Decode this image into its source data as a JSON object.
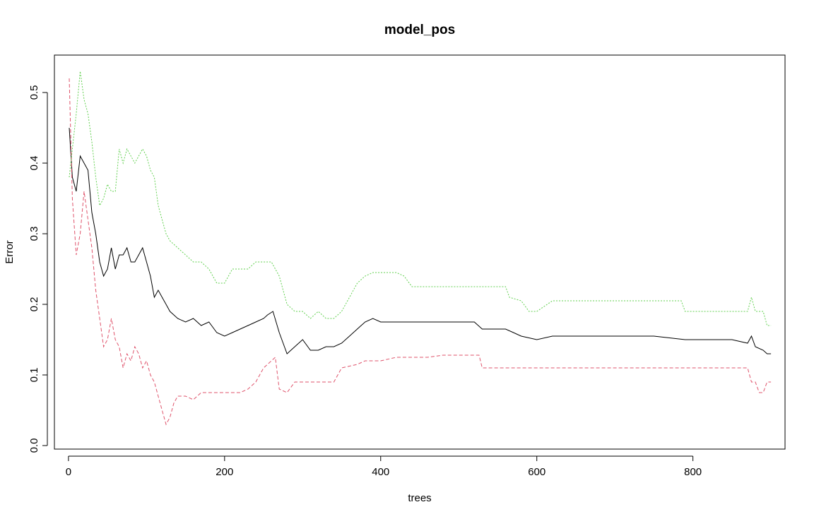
{
  "chart_data": {
    "type": "line",
    "title": "model_pos",
    "xlabel": "trees",
    "ylabel": "Error",
    "xlim": [
      -18,
      918
    ],
    "ylim": [
      -0.005,
      0.553
    ],
    "xticks": [
      0,
      200,
      400,
      600,
      800
    ],
    "yticks": [
      0.0,
      0.1,
      0.2,
      0.3,
      0.4,
      0.5
    ],
    "xtick_labels": [
      "0",
      "200",
      "400",
      "600",
      "800"
    ],
    "ytick_labels": [
      "0.0",
      "0.1",
      "0.2",
      "0.3",
      "0.4",
      "0.5"
    ],
    "grid": false,
    "legend": "none",
    "series": [
      {
        "color": "#000000",
        "dash": "solid",
        "points": [
          [
            1,
            0.45
          ],
          [
            5,
            0.38
          ],
          [
            10,
            0.36
          ],
          [
            15,
            0.41
          ],
          [
            20,
            0.4
          ],
          [
            25,
            0.39
          ],
          [
            30,
            0.33
          ],
          [
            35,
            0.3
          ],
          [
            40,
            0.26
          ],
          [
            45,
            0.24
          ],
          [
            50,
            0.25
          ],
          [
            55,
            0.28
          ],
          [
            60,
            0.25
          ],
          [
            65,
            0.27
          ],
          [
            70,
            0.27
          ],
          [
            75,
            0.28
          ],
          [
            80,
            0.26
          ],
          [
            85,
            0.26
          ],
          [
            90,
            0.27
          ],
          [
            95,
            0.28
          ],
          [
            100,
            0.26
          ],
          [
            105,
            0.24
          ],
          [
            110,
            0.21
          ],
          [
            115,
            0.22
          ],
          [
            120,
            0.21
          ],
          [
            125,
            0.2
          ],
          [
            130,
            0.19
          ],
          [
            140,
            0.18
          ],
          [
            150,
            0.175
          ],
          [
            160,
            0.18
          ],
          [
            170,
            0.17
          ],
          [
            180,
            0.175
          ],
          [
            190,
            0.16
          ],
          [
            200,
            0.155
          ],
          [
            210,
            0.16
          ],
          [
            220,
            0.165
          ],
          [
            230,
            0.17
          ],
          [
            240,
            0.175
          ],
          [
            250,
            0.18
          ],
          [
            255,
            0.185
          ],
          [
            262,
            0.19
          ],
          [
            270,
            0.16
          ],
          [
            280,
            0.13
          ],
          [
            290,
            0.14
          ],
          [
            300,
            0.15
          ],
          [
            310,
            0.135
          ],
          [
            320,
            0.135
          ],
          [
            330,
            0.14
          ],
          [
            340,
            0.14
          ],
          [
            350,
            0.145
          ],
          [
            360,
            0.155
          ],
          [
            370,
            0.165
          ],
          [
            380,
            0.175
          ],
          [
            390,
            0.18
          ],
          [
            400,
            0.175
          ],
          [
            420,
            0.175
          ],
          [
            440,
            0.175
          ],
          [
            460,
            0.175
          ],
          [
            480,
            0.175
          ],
          [
            500,
            0.175
          ],
          [
            520,
            0.175
          ],
          [
            530,
            0.165
          ],
          [
            540,
            0.165
          ],
          [
            560,
            0.165
          ],
          [
            570,
            0.16
          ],
          [
            580,
            0.155
          ],
          [
            600,
            0.15
          ],
          [
            620,
            0.155
          ],
          [
            660,
            0.155
          ],
          [
            700,
            0.155
          ],
          [
            750,
            0.155
          ],
          [
            790,
            0.15
          ],
          [
            820,
            0.15
          ],
          [
            850,
            0.15
          ],
          [
            870,
            0.145
          ],
          [
            875,
            0.155
          ],
          [
            880,
            0.14
          ],
          [
            890,
            0.135
          ],
          [
            895,
            0.13
          ],
          [
            900,
            0.13
          ]
        ]
      },
      {
        "color": "#df536b",
        "dash": "dashed",
        "points": [
          [
            1,
            0.52
          ],
          [
            5,
            0.35
          ],
          [
            10,
            0.27
          ],
          [
            15,
            0.3
          ],
          [
            20,
            0.36
          ],
          [
            25,
            0.32
          ],
          [
            30,
            0.28
          ],
          [
            35,
            0.22
          ],
          [
            40,
            0.18
          ],
          [
            45,
            0.14
          ],
          [
            50,
            0.15
          ],
          [
            55,
            0.18
          ],
          [
            60,
            0.15
          ],
          [
            65,
            0.14
          ],
          [
            70,
            0.11
          ],
          [
            75,
            0.13
          ],
          [
            80,
            0.12
          ],
          [
            85,
            0.14
          ],
          [
            90,
            0.13
          ],
          [
            95,
            0.11
          ],
          [
            100,
            0.12
          ],
          [
            105,
            0.1
          ],
          [
            110,
            0.09
          ],
          [
            115,
            0.07
          ],
          [
            120,
            0.05
          ],
          [
            125,
            0.03
          ],
          [
            130,
            0.04
          ],
          [
            135,
            0.06
          ],
          [
            140,
            0.07
          ],
          [
            150,
            0.07
          ],
          [
            160,
            0.065
          ],
          [
            170,
            0.075
          ],
          [
            180,
            0.075
          ],
          [
            200,
            0.075
          ],
          [
            220,
            0.075
          ],
          [
            230,
            0.08
          ],
          [
            240,
            0.09
          ],
          [
            250,
            0.11
          ],
          [
            260,
            0.12
          ],
          [
            265,
            0.125
          ],
          [
            270,
            0.08
          ],
          [
            280,
            0.075
          ],
          [
            290,
            0.09
          ],
          [
            300,
            0.09
          ],
          [
            340,
            0.09
          ],
          [
            350,
            0.11
          ],
          [
            370,
            0.115
          ],
          [
            380,
            0.12
          ],
          [
            400,
            0.12
          ],
          [
            420,
            0.125
          ],
          [
            440,
            0.125
          ],
          [
            460,
            0.125
          ],
          [
            480,
            0.128
          ],
          [
            526,
            0.128
          ],
          [
            530,
            0.11
          ],
          [
            600,
            0.11
          ],
          [
            700,
            0.11
          ],
          [
            800,
            0.11
          ],
          [
            870,
            0.11
          ],
          [
            875,
            0.09
          ],
          [
            880,
            0.09
          ],
          [
            885,
            0.075
          ],
          [
            890,
            0.075
          ],
          [
            895,
            0.09
          ],
          [
            900,
            0.09
          ]
        ]
      },
      {
        "color": "#61d04f",
        "dash": "dotted",
        "points": [
          [
            1,
            0.38
          ],
          [
            5,
            0.42
          ],
          [
            10,
            0.47
          ],
          [
            15,
            0.53
          ],
          [
            20,
            0.49
          ],
          [
            25,
            0.47
          ],
          [
            30,
            0.43
          ],
          [
            35,
            0.38
          ],
          [
            40,
            0.34
          ],
          [
            45,
            0.35
          ],
          [
            50,
            0.37
          ],
          [
            55,
            0.36
          ],
          [
            60,
            0.36
          ],
          [
            65,
            0.42
          ],
          [
            70,
            0.4
          ],
          [
            75,
            0.42
          ],
          [
            80,
            0.41
          ],
          [
            85,
            0.4
          ],
          [
            90,
            0.41
          ],
          [
            95,
            0.42
          ],
          [
            100,
            0.41
          ],
          [
            105,
            0.39
          ],
          [
            110,
            0.38
          ],
          [
            115,
            0.34
          ],
          [
            120,
            0.32
          ],
          [
            125,
            0.3
          ],
          [
            130,
            0.29
          ],
          [
            140,
            0.28
          ],
          [
            150,
            0.27
          ],
          [
            160,
            0.26
          ],
          [
            170,
            0.26
          ],
          [
            180,
            0.25
          ],
          [
            190,
            0.23
          ],
          [
            200,
            0.23
          ],
          [
            210,
            0.25
          ],
          [
            220,
            0.25
          ],
          [
            230,
            0.25
          ],
          [
            240,
            0.26
          ],
          [
            250,
            0.26
          ],
          [
            260,
            0.26
          ],
          [
            270,
            0.24
          ],
          [
            280,
            0.2
          ],
          [
            290,
            0.19
          ],
          [
            300,
            0.19
          ],
          [
            310,
            0.18
          ],
          [
            320,
            0.19
          ],
          [
            330,
            0.18
          ],
          [
            340,
            0.18
          ],
          [
            350,
            0.19
          ],
          [
            360,
            0.21
          ],
          [
            370,
            0.23
          ],
          [
            380,
            0.24
          ],
          [
            390,
            0.245
          ],
          [
            400,
            0.245
          ],
          [
            420,
            0.245
          ],
          [
            430,
            0.24
          ],
          [
            440,
            0.225
          ],
          [
            480,
            0.225
          ],
          [
            520,
            0.225
          ],
          [
            560,
            0.225
          ],
          [
            565,
            0.21
          ],
          [
            580,
            0.205
          ],
          [
            590,
            0.19
          ],
          [
            600,
            0.19
          ],
          [
            620,
            0.205
          ],
          [
            700,
            0.205
          ],
          [
            750,
            0.205
          ],
          [
            785,
            0.205
          ],
          [
            790,
            0.19
          ],
          [
            800,
            0.19
          ],
          [
            850,
            0.19
          ],
          [
            870,
            0.19
          ],
          [
            875,
            0.21
          ],
          [
            880,
            0.19
          ],
          [
            890,
            0.19
          ],
          [
            895,
            0.17
          ],
          [
            900,
            0.17
          ]
        ]
      }
    ]
  }
}
